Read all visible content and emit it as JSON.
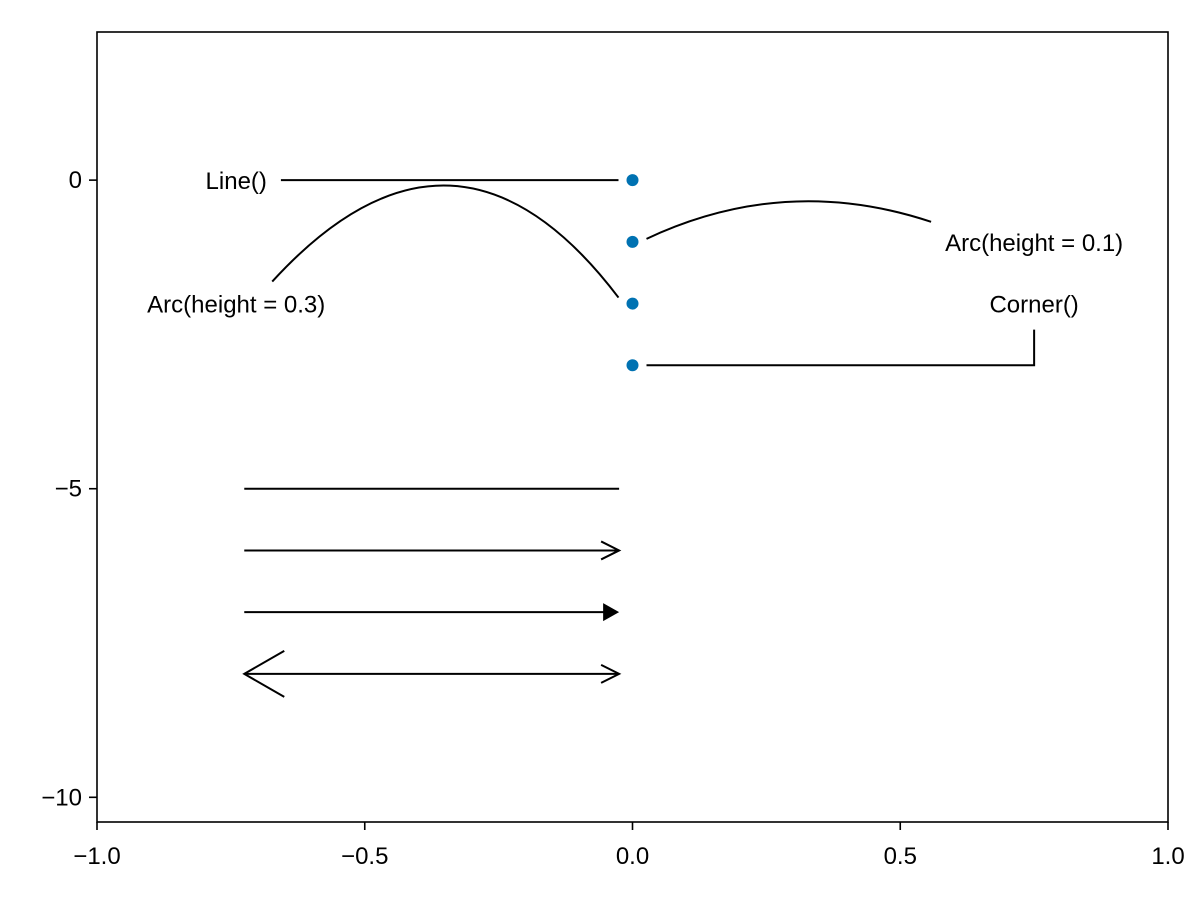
{
  "chart_data": {
    "type": "scatter",
    "xlim": [
      -1.0,
      1.0
    ],
    "ylim": [
      -10.4,
      2.4
    ],
    "grid": false,
    "x_ticks": [
      {
        "value": -1.0,
        "label": "−1.0"
      },
      {
        "value": -0.5,
        "label": "−0.5"
      },
      {
        "value": 0.0,
        "label": "0.0"
      },
      {
        "value": 0.5,
        "label": "0.5"
      },
      {
        "value": 1.0,
        "label": "1.0"
      }
    ],
    "y_ticks": [
      {
        "value": 0,
        "label": "0"
      },
      {
        "value": -5,
        "label": "−5"
      },
      {
        "value": -10,
        "label": "−10"
      }
    ],
    "marker_color": "#0072b2",
    "line_color": "#000000",
    "points": [
      {
        "x": 0.0,
        "y": 0
      },
      {
        "x": 0.0,
        "y": -1
      },
      {
        "x": 0.0,
        "y": -2
      },
      {
        "x": 0.0,
        "y": -3
      }
    ],
    "annotations": [
      {
        "text": "Line()",
        "text_x": -0.74,
        "text_y": 0,
        "target_x": 0.0,
        "target_y": 0,
        "path": "line"
      },
      {
        "text": "Arc(height = 0.1)",
        "text_x": 0.75,
        "text_y": -1,
        "target_x": 0.0,
        "target_y": -1,
        "path": "arc",
        "height": 0.1
      },
      {
        "text": "Arc(height = 0.3)",
        "text_x": -0.74,
        "text_y": -2,
        "target_x": 0.0,
        "target_y": -2,
        "path": "arc",
        "height": 0.3
      },
      {
        "text": "Corner()",
        "text_x": 0.75,
        "text_y": -2,
        "target_x": 0.0,
        "target_y": -3,
        "path": "corner"
      }
    ],
    "arrows": [
      {
        "x1": -0.725,
        "x2": -0.025,
        "y": -5,
        "style": "none"
      },
      {
        "x1": -0.725,
        "x2": -0.025,
        "y": -6,
        "style": "open"
      },
      {
        "x1": -0.725,
        "x2": -0.025,
        "y": -7,
        "style": "filled"
      },
      {
        "x1": -0.725,
        "x2": -0.025,
        "y": -8,
        "style": "double-open"
      }
    ]
  }
}
